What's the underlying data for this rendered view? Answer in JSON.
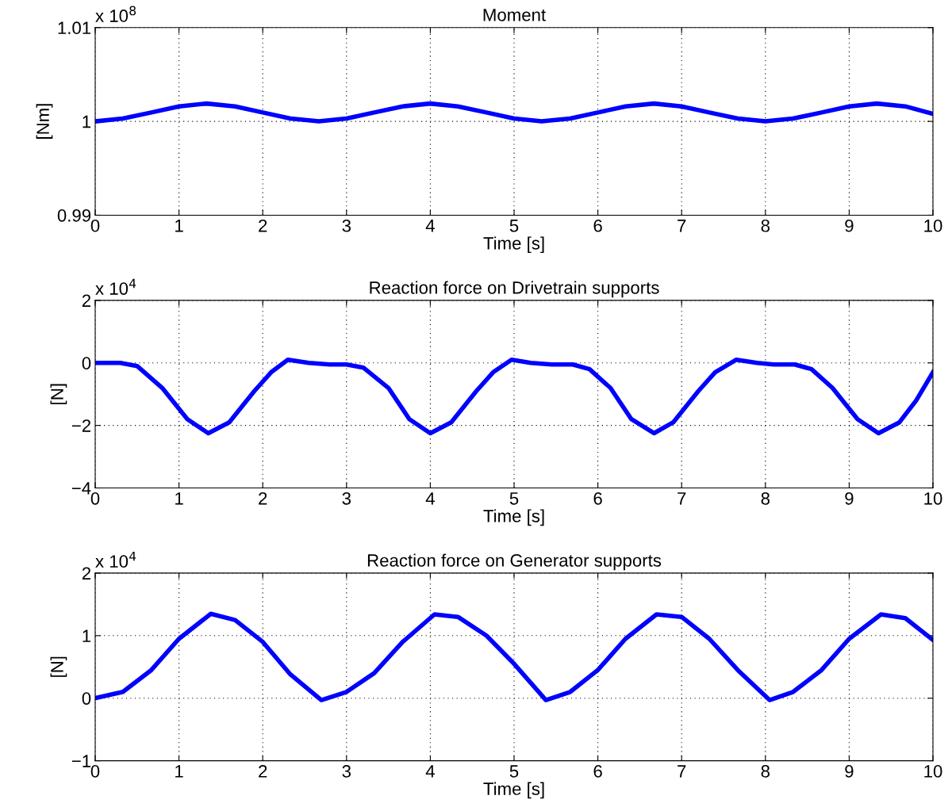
{
  "chart_data": [
    {
      "type": "line",
      "title": "Moment",
      "xlabel": "Time [s]",
      "ylabel": "[Nm]",
      "annotations": [
        "x 10$^{8}$"
      ],
      "grid": true,
      "line_style": "solid",
      "marker": "none",
      "xlim": [
        0,
        10
      ],
      "xticks": [
        0,
        1,
        2,
        3,
        4,
        5,
        6,
        7,
        8,
        9,
        10
      ],
      "ylim": [
        0.99,
        1.01
      ],
      "yticks": [
        0.99,
        1,
        1.01
      ],
      "x": [
        0,
        0.33,
        0.67,
        1.0,
        1.33,
        1.67,
        2.0,
        2.33,
        2.67,
        3.0,
        3.33,
        3.67,
        4.0,
        4.33,
        4.67,
        5.0,
        5.33,
        5.67,
        6.0,
        6.33,
        6.67,
        7.0,
        7.33,
        7.67,
        8.0,
        8.33,
        8.67,
        9.0,
        9.33,
        9.67,
        10.0
      ],
      "series": [
        {
          "color": "#0000ff",
          "values": [
            1.0,
            1.0003,
            1.00095,
            1.0016,
            1.0019,
            1.0016,
            1.00095,
            1.0003,
            1.0,
            1.0003,
            1.00095,
            1.0016,
            1.0019,
            1.0016,
            1.00095,
            1.0003,
            1.0,
            1.0003,
            1.00095,
            1.0016,
            1.0019,
            1.0016,
            1.00095,
            1.0003,
            1.0,
            1.0003,
            1.00095,
            1.0016,
            1.0019,
            1.0016,
            1.0008
          ]
        }
      ]
    },
    {
      "type": "line",
      "title": "Reaction force on Drivetrain supports",
      "xlabel": "Time [s]",
      "ylabel": "[N]",
      "annotations": [
        "x 10$^{4}$"
      ],
      "grid": true,
      "line_style": "solid",
      "marker": "none",
      "xlim": [
        0,
        10
      ],
      "xticks": [
        0,
        1,
        2,
        3,
        4,
        5,
        6,
        7,
        8,
        9,
        10
      ],
      "ylim": [
        -4,
        2
      ],
      "yticks": [
        {
          "value": -4,
          "label": "−4"
        },
        {
          "value": -2,
          "label": "−2"
        },
        0,
        2
      ],
      "x": [
        0,
        0.3,
        0.5,
        0.8,
        1.1,
        1.35,
        1.6,
        1.9,
        2.1,
        2.3,
        2.55,
        2.8,
        3.0,
        3.2,
        3.5,
        3.75,
        4.0,
        4.25,
        4.55,
        4.75,
        4.97,
        5.2,
        5.45,
        5.7,
        5.9,
        6.15,
        6.4,
        6.67,
        6.9,
        7.2,
        7.4,
        7.65,
        7.9,
        8.1,
        8.35,
        8.55,
        8.8,
        9.1,
        9.35,
        9.6,
        9.8,
        10.0
      ],
      "series": [
        {
          "color": "#0000ff",
          "values": [
            0,
            0,
            -0.1,
            -0.8,
            -1.8,
            -2.25,
            -1.9,
            -0.9,
            -0.3,
            0.1,
            0.0,
            -0.05,
            -0.05,
            -0.15,
            -0.8,
            -1.8,
            -2.25,
            -1.9,
            -0.9,
            -0.3,
            0.1,
            0.0,
            -0.05,
            -0.05,
            -0.2,
            -0.8,
            -1.8,
            -2.25,
            -1.9,
            -0.9,
            -0.3,
            0.1,
            0.0,
            -0.05,
            -0.05,
            -0.2,
            -0.8,
            -1.8,
            -2.25,
            -1.9,
            -1.2,
            -0.3
          ]
        }
      ]
    },
    {
      "type": "line",
      "title": "Reaction force on Generator supports",
      "xlabel": "Time [s]",
      "ylabel": "[N]",
      "annotations": [
        "x 10$^{4}$"
      ],
      "grid": true,
      "line_style": "solid",
      "marker": "none",
      "xlim": [
        0,
        10
      ],
      "xticks": [
        0,
        1,
        2,
        3,
        4,
        5,
        6,
        7,
        8,
        9,
        10
      ],
      "ylim": [
        -1,
        2
      ],
      "yticks": [
        {
          "value": -1,
          "label": "−1"
        },
        0,
        1,
        2
      ],
      "x": [
        0,
        0.33,
        0.67,
        1.0,
        1.38,
        1.67,
        2.0,
        2.33,
        2.7,
        3.0,
        3.33,
        3.67,
        4.05,
        4.33,
        4.67,
        5.0,
        5.38,
        5.67,
        6.0,
        6.33,
        6.7,
        7.0,
        7.33,
        7.67,
        8.05,
        8.33,
        8.67,
        9.0,
        9.38,
        9.67,
        10.0
      ],
      "series": [
        {
          "color": "#0000ff",
          "values": [
            0,
            0.1,
            0.45,
            0.95,
            1.35,
            1.25,
            0.9,
            0.38,
            -0.03,
            0.1,
            0.4,
            0.9,
            1.34,
            1.3,
            1.0,
            0.55,
            -0.03,
            0.1,
            0.45,
            0.95,
            1.34,
            1.3,
            0.95,
            0.45,
            -0.03,
            0.1,
            0.45,
            0.95,
            1.34,
            1.28,
            0.93
          ]
        }
      ]
    }
  ]
}
